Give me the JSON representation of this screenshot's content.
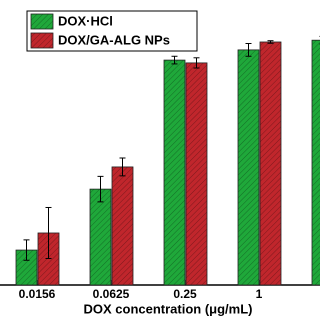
{
  "chart_data": {
    "type": "bar",
    "x_label": "DOX concentration (μg/mL)",
    "categories": [
      "0.0156",
      "0.0625",
      "0.25",
      "1",
      null
    ],
    "series": [
      {
        "name": "DOX·HCl",
        "color": "#1fa83a",
        "values": [
          13.7,
          37.6,
          88.2,
          92.2,
          96
        ],
        "errors": [
          4,
          5,
          1.5,
          2.5,
          1.5
        ]
      },
      {
        "name": "DOX/GA-ALG NPs",
        "color": "#c0262c",
        "values": [
          20.4,
          46.3,
          87.1,
          95.3,
          null
        ],
        "errors": [
          10,
          3.5,
          2,
          0.5,
          null
        ]
      }
    ],
    "ylim": [
      0,
      100
    ],
    "hatched": true,
    "legend": "top-left"
  }
}
